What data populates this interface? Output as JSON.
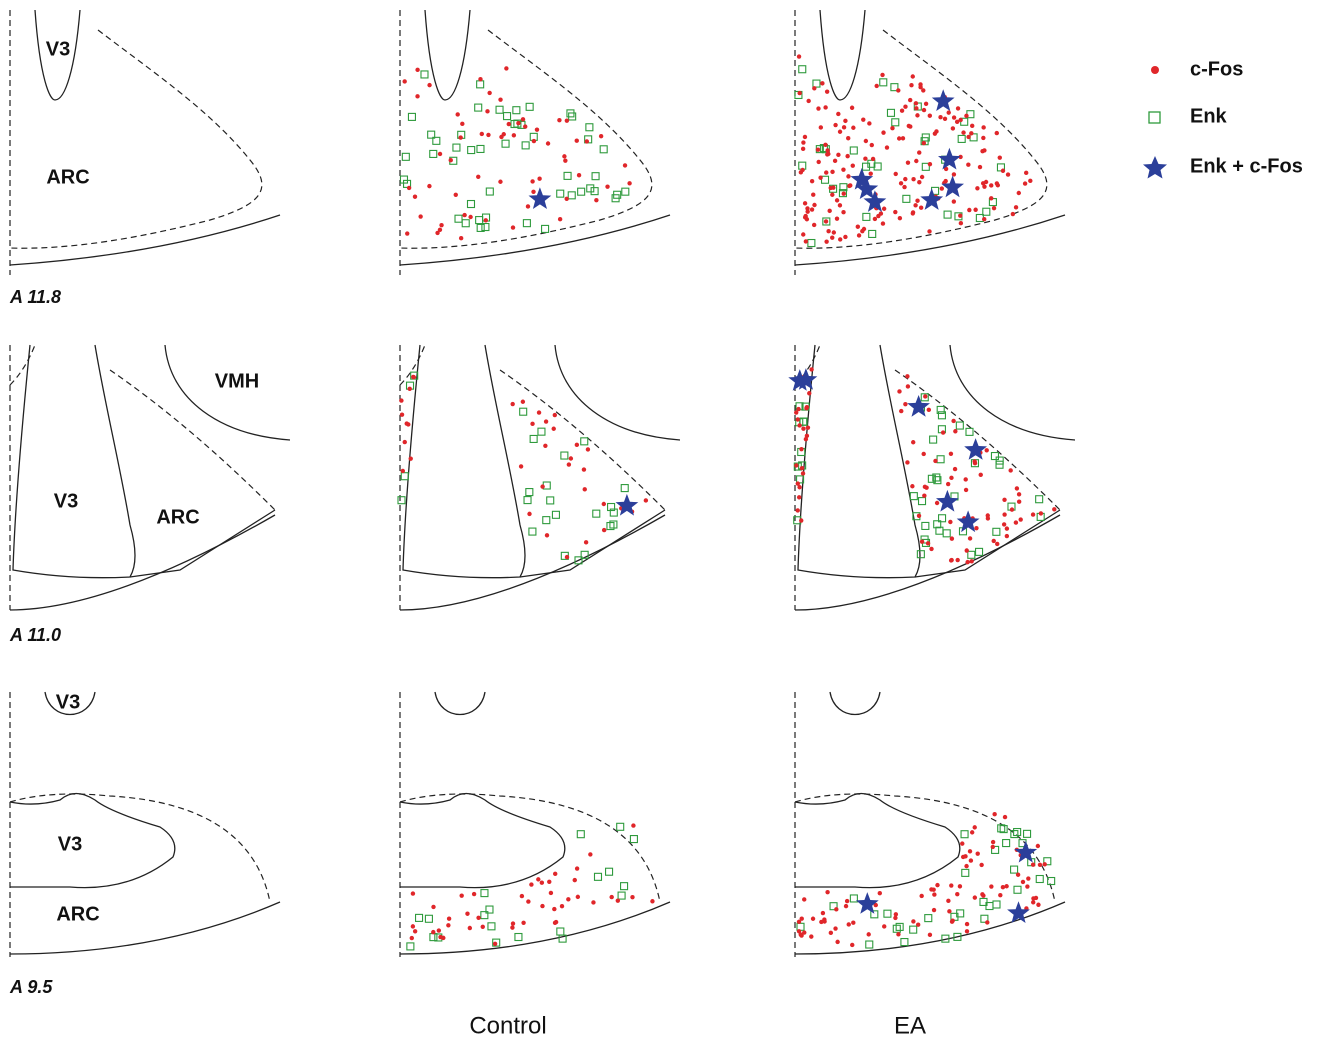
{
  "sections": [
    {
      "label": "A 11.8",
      "regions": [
        "V3",
        "ARC"
      ]
    },
    {
      "label": "A 11.0",
      "regions": [
        "VMH",
        "V3",
        "ARC"
      ]
    },
    {
      "label": "A 9.5",
      "regions": [
        "V3",
        "V3",
        "ARC"
      ]
    }
  ],
  "columns": [
    "Control",
    "EA"
  ],
  "legend": [
    {
      "label": "c-Fos"
    },
    {
      "label": "Enk"
    },
    {
      "label": "Enk + c-Fos"
    }
  ]
}
